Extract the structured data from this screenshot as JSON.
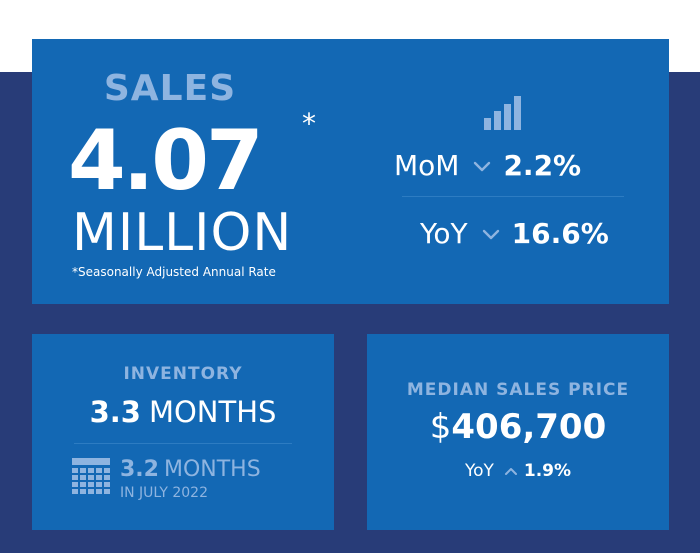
{
  "colors": {
    "page_background": "#ffffff",
    "backdrop": "#283c78",
    "panel": "#1368b4",
    "text": "#ffffff",
    "muted_text": "#8eb4e0"
  },
  "sales": {
    "heading": "SALES",
    "value": "4.07",
    "asterisk": "*",
    "unit": "MILLION",
    "footnote": "*Seasonally Adjusted Annual Rate",
    "icon": "bar-chart-icon",
    "mom": {
      "label": "MoM",
      "direction": "down",
      "icon": "chevron-down-icon",
      "value": "2.2%"
    },
    "yoy": {
      "label": "YoY",
      "direction": "down",
      "icon": "chevron-down-icon",
      "value": "16.6%"
    }
  },
  "inventory": {
    "heading": "INVENTORY",
    "value": "3.3",
    "unit": "MONTHS",
    "icon": "calendar-icon",
    "previous": {
      "value": "3.2",
      "unit": "MONTHS",
      "period": "IN JULY 2022"
    }
  },
  "median_price": {
    "heading": "MEDIAN SALES PRICE",
    "currency": "$",
    "value": "406,700",
    "yoy": {
      "label": "YoY",
      "direction": "up",
      "icon": "chevron-up-icon",
      "value": "1.9%"
    }
  }
}
